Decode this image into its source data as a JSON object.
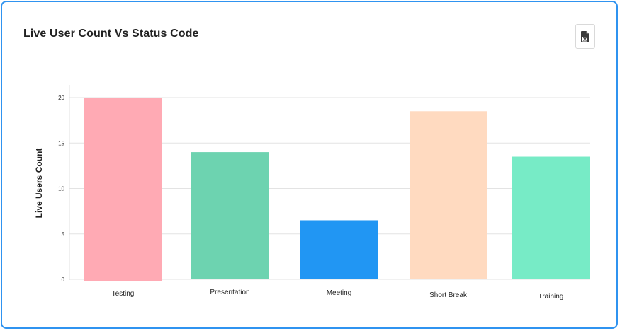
{
  "card": {
    "border_color": "#2f93f0"
  },
  "export": {
    "icon": "excel-file-icon"
  },
  "chart_data": {
    "type": "bar",
    "title": "Live User Count Vs Status Code",
    "xlabel": "",
    "ylabel": "Live Users Count",
    "categories": [
      "Testing",
      "Presentation",
      "Meeting",
      "Short Break",
      "Training"
    ],
    "values": [
      20,
      14,
      6.5,
      18.5,
      13.5
    ],
    "colors": [
      "#ffaab4",
      "#6dd3b0",
      "#2196f3",
      "#ffdac0",
      "#77ebc6"
    ],
    "yticks": [
      "0",
      "5",
      "10",
      "15",
      "20"
    ],
    "ylim": [
      0,
      20
    ],
    "grid": true,
    "legend": "none"
  }
}
